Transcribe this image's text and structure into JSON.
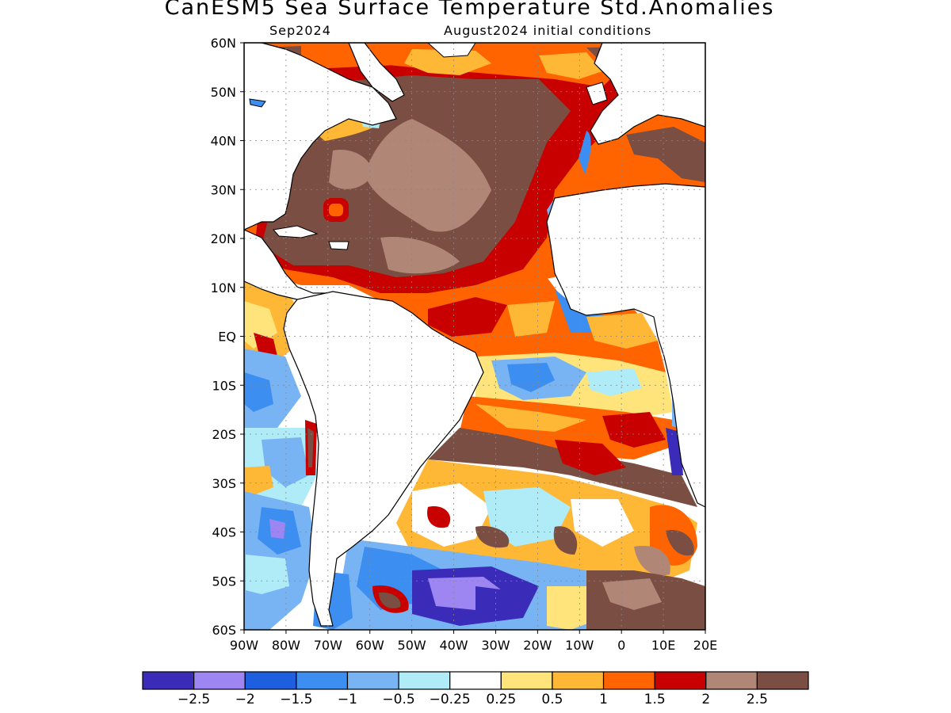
{
  "title": "CanESM5 Sea Surface Temperature Std.Anomalies",
  "subtitle_left": "Sep2024",
  "subtitle_right": "August2024 initial conditions",
  "map": {
    "lon_range": [
      -90,
      20
    ],
    "lat_range": [
      -60,
      60
    ],
    "lat_ticks": [
      {
        "value": 60,
        "label": "60N"
      },
      {
        "value": 50,
        "label": "50N"
      },
      {
        "value": 40,
        "label": "40N"
      },
      {
        "value": 30,
        "label": "30N"
      },
      {
        "value": 20,
        "label": "20N"
      },
      {
        "value": 10,
        "label": "10N"
      },
      {
        "value": 0,
        "label": "EQ"
      },
      {
        "value": -10,
        "label": "10S"
      },
      {
        "value": -20,
        "label": "20S"
      },
      {
        "value": -30,
        "label": "30S"
      },
      {
        "value": -40,
        "label": "40S"
      },
      {
        "value": -50,
        "label": "50S"
      },
      {
        "value": -60,
        "label": "60S"
      }
    ],
    "lon_ticks": [
      {
        "value": -90,
        "label": "90W"
      },
      {
        "value": -80,
        "label": "80W"
      },
      {
        "value": -70,
        "label": "70W"
      },
      {
        "value": -60,
        "label": "60W"
      },
      {
        "value": -50,
        "label": "50W"
      },
      {
        "value": -40,
        "label": "40W"
      },
      {
        "value": -30,
        "label": "30W"
      },
      {
        "value": -20,
        "label": "20W"
      },
      {
        "value": -10,
        "label": "10W"
      },
      {
        "value": 0,
        "label": "0"
      },
      {
        "value": 10,
        "label": "10E"
      },
      {
        "value": 20,
        "label": "20E"
      }
    ],
    "grid": true
  },
  "colorbar": {
    "colors": [
      "#3a2cb8",
      "#9d86f2",
      "#1e5fe0",
      "#3c8ef0",
      "#78b4f4",
      "#b0ecf8",
      "#ffffff",
      "#ffe47c",
      "#ffb836",
      "#ff6400",
      "#c80000",
      "#b08676",
      "#7a4e42"
    ],
    "labels": [
      "−2.5",
      "−2",
      "−1.5",
      "−1",
      "−0.5",
      "−0.25",
      "0.25",
      "0.5",
      "1",
      "1.5",
      "2",
      "2.5"
    ]
  },
  "chart_data": {
    "type": "heatmap",
    "title": "CanESM5 Sea Surface Temperature Std.Anomalies",
    "subtitle": [
      "Sep2024",
      "August2024 initial conditions"
    ],
    "x_range": [
      -90,
      20
    ],
    "y_range": [
      -60,
      60
    ],
    "levels": [
      -2.5,
      -2,
      -1.5,
      -1,
      -0.5,
      -0.25,
      0.25,
      0.5,
      1,
      1.5,
      2,
      2.5
    ]
  }
}
